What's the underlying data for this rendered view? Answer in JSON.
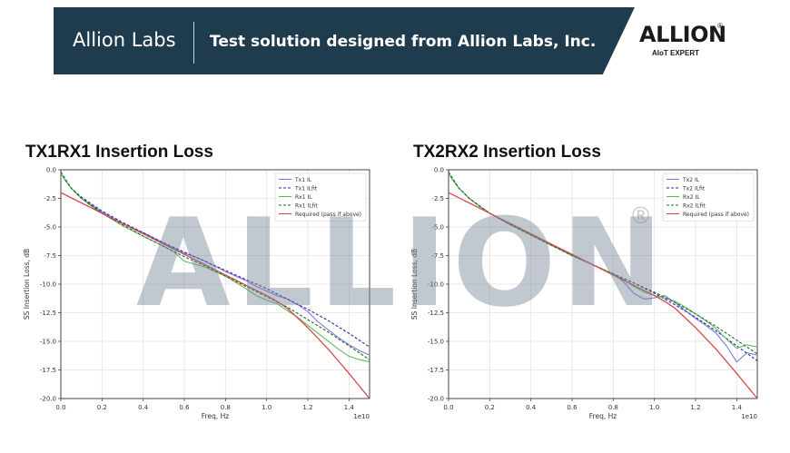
{
  "banner": {
    "brand": "Allion Labs",
    "tagline": "Test solution designed from Allion Labs, Inc."
  },
  "logo": {
    "wordmark": "ALLION",
    "registered": "®",
    "subtitle": "AIoT EXPERT"
  },
  "watermark": {
    "text": "ALLION",
    "registered": "®"
  },
  "colors": {
    "banner_bg": "#1f3b4e",
    "tx_il": "#7b7be6",
    "tx_ilfit": "#2a2aa8",
    "rx_il": "#62b862",
    "rx_ilfit": "#1f6e1f",
    "required": "#d94848"
  },
  "chart_data": [
    {
      "type": "line",
      "title": "TX1RX1 Insertion Loss",
      "xlabel": "Freq, Hz",
      "ylabel": "SS Insertion Loss, dB",
      "x_exponent_label": "1e10",
      "xlim": [
        0.0,
        1.5
      ],
      "ylim": [
        -20.0,
        0.0
      ],
      "xticks": [
        "0.0",
        "0.2",
        "0.4",
        "0.6",
        "0.8",
        "1.0",
        "1.2",
        "1.4"
      ],
      "xtick_values": [
        0.0,
        0.2,
        0.4,
        0.6,
        0.8,
        1.0,
        1.2,
        1.4
      ],
      "yticks": [
        "0.0",
        "-2.5",
        "-5.0",
        "-7.5",
        "-10.0",
        "-12.5",
        "-15.0",
        "-17.5",
        "-20.0"
      ],
      "ytick_values": [
        0.0,
        -2.5,
        -5.0,
        -7.5,
        -10.0,
        -12.5,
        -15.0,
        -17.5,
        -20.0
      ],
      "grid": true,
      "legend_position": "top-right",
      "series": [
        {
          "name": "Tx1 IL",
          "style": "solid",
          "color_key": "tx_il",
          "x": [
            0.0,
            0.02,
            0.05,
            0.1,
            0.15,
            0.2,
            0.3,
            0.4,
            0.5,
            0.6,
            0.65,
            0.7,
            0.8,
            0.9,
            0.95,
            1.0,
            1.05,
            1.1,
            1.15,
            1.2,
            1.25,
            1.3,
            1.35,
            1.4,
            1.45,
            1.5
          ],
          "y": [
            -0.3,
            -0.9,
            -1.6,
            -2.5,
            -3.1,
            -3.7,
            -4.7,
            -5.5,
            -6.4,
            -7.3,
            -7.6,
            -8.0,
            -8.9,
            -9.7,
            -10.2,
            -10.6,
            -11.0,
            -11.3,
            -11.8,
            -12.4,
            -13.3,
            -14.0,
            -14.7,
            -15.3,
            -15.8,
            -16.2
          ]
        },
        {
          "name": "Tx1 ILfit",
          "style": "dashed",
          "color_key": "tx_ilfit",
          "x": [
            0.0,
            0.05,
            0.1,
            0.2,
            0.3,
            0.4,
            0.5,
            0.6,
            0.7,
            0.8,
            0.9,
            1.0,
            1.1,
            1.2,
            1.3,
            1.4,
            1.5
          ],
          "y": [
            -0.2,
            -1.6,
            -2.4,
            -3.6,
            -4.6,
            -5.5,
            -6.4,
            -7.2,
            -8.0,
            -8.8,
            -9.6,
            -10.4,
            -11.3,
            -12.2,
            -13.2,
            -14.3,
            -15.5
          ]
        },
        {
          "name": "Rx1 IL",
          "style": "solid",
          "color_key": "rx_il",
          "x": [
            0.0,
            0.02,
            0.05,
            0.1,
            0.15,
            0.2,
            0.3,
            0.4,
            0.5,
            0.55,
            0.6,
            0.7,
            0.8,
            0.9,
            0.95,
            1.0,
            1.05,
            1.1,
            1.15,
            1.2,
            1.25,
            1.3,
            1.35,
            1.4,
            1.45,
            1.5
          ],
          "y": [
            -0.3,
            -0.9,
            -1.6,
            -2.5,
            -3.2,
            -3.8,
            -4.9,
            -5.8,
            -6.7,
            -7.2,
            -8.0,
            -8.5,
            -9.3,
            -10.4,
            -11.0,
            -11.4,
            -11.7,
            -12.3,
            -12.9,
            -13.6,
            -14.3,
            -15.0,
            -15.7,
            -16.3,
            -16.6,
            -16.8
          ]
        },
        {
          "name": "Rx1 ILfit",
          "style": "dashed",
          "color_key": "rx_ilfit",
          "x": [
            0.0,
            0.05,
            0.1,
            0.2,
            0.3,
            0.4,
            0.5,
            0.6,
            0.7,
            0.8,
            0.9,
            1.0,
            1.1,
            1.2,
            1.3,
            1.4,
            1.5
          ],
          "y": [
            -0.2,
            -1.6,
            -2.5,
            -3.8,
            -4.8,
            -5.8,
            -6.7,
            -7.6,
            -8.4,
            -9.3,
            -10.2,
            -11.1,
            -12.0,
            -13.1,
            -14.2,
            -15.4,
            -16.6
          ]
        },
        {
          "name": "Required (pass if above)",
          "style": "solid",
          "color_key": "required",
          "x": [
            0.0,
            0.1,
            0.2,
            0.3,
            0.4,
            0.5,
            0.6,
            0.7,
            0.8,
            0.9,
            1.0,
            1.05,
            1.1,
            1.2,
            1.3,
            1.4,
            1.5
          ],
          "y": [
            -2.0,
            -2.9,
            -3.8,
            -4.7,
            -5.6,
            -6.5,
            -7.4,
            -8.3,
            -9.2,
            -10.1,
            -11.0,
            -11.5,
            -12.1,
            -13.8,
            -15.7,
            -17.8,
            -20.0
          ]
        }
      ]
    },
    {
      "type": "line",
      "title": "TX2RX2 Insertion Loss",
      "xlabel": "Freq, Hz",
      "ylabel": "SS Insertion Loss, dB",
      "x_exponent_label": "1e10",
      "xlim": [
        0.0,
        1.5
      ],
      "ylim": [
        -20.0,
        0.0
      ],
      "xticks": [
        "0.0",
        "0.2",
        "0.4",
        "0.6",
        "0.8",
        "1.0",
        "1.2",
        "1.4"
      ],
      "xtick_values": [
        0.0,
        0.2,
        0.4,
        0.6,
        0.8,
        1.0,
        1.2,
        1.4
      ],
      "yticks": [
        "0.0",
        "-2.5",
        "-5.0",
        "-7.5",
        "-10.0",
        "-12.5",
        "-15.0",
        "-17.5",
        "-20.0"
      ],
      "ytick_values": [
        0.0,
        -2.5,
        -5.0,
        -7.5,
        -10.0,
        -12.5,
        -15.0,
        -17.5,
        -20.0
      ],
      "grid": true,
      "legend_position": "top-right",
      "series": [
        {
          "name": "Tx2 IL",
          "style": "solid",
          "color_key": "tx_il",
          "x": [
            0.0,
            0.02,
            0.05,
            0.1,
            0.15,
            0.2,
            0.3,
            0.4,
            0.5,
            0.6,
            0.7,
            0.8,
            0.85,
            0.9,
            0.95,
            1.0,
            1.05,
            1.1,
            1.15,
            1.2,
            1.25,
            1.3,
            1.35,
            1.4,
            1.45,
            1.5
          ],
          "y": [
            -0.3,
            -0.9,
            -1.6,
            -2.5,
            -3.2,
            -3.8,
            -4.8,
            -5.7,
            -6.6,
            -7.5,
            -8.3,
            -9.1,
            -9.8,
            -10.8,
            -11.3,
            -11.2,
            -11.0,
            -11.6,
            -12.3,
            -13.0,
            -13.6,
            -14.3,
            -15.4,
            -16.8,
            -16.0,
            -16.2
          ]
        },
        {
          "name": "Tx2 ILfit",
          "style": "dashed",
          "color_key": "tx_ilfit",
          "x": [
            0.0,
            0.05,
            0.1,
            0.2,
            0.3,
            0.4,
            0.5,
            0.6,
            0.7,
            0.8,
            0.9,
            1.0,
            1.1,
            1.2,
            1.3,
            1.4,
            1.5
          ],
          "y": [
            -0.2,
            -1.6,
            -2.5,
            -3.8,
            -4.8,
            -5.7,
            -6.6,
            -7.5,
            -8.3,
            -9.1,
            -9.9,
            -10.8,
            -11.8,
            -12.9,
            -14.1,
            -15.4,
            -16.7
          ]
        },
        {
          "name": "Rx2 IL",
          "style": "solid",
          "color_key": "rx_il",
          "x": [
            0.0,
            0.02,
            0.05,
            0.1,
            0.15,
            0.2,
            0.3,
            0.4,
            0.5,
            0.6,
            0.7,
            0.8,
            0.85,
            0.9,
            0.95,
            1.0,
            1.05,
            1.1,
            1.15,
            1.2,
            1.25,
            1.3,
            1.35,
            1.4,
            1.45,
            1.5
          ],
          "y": [
            -0.3,
            -0.9,
            -1.6,
            -2.5,
            -3.2,
            -3.8,
            -4.8,
            -5.7,
            -6.6,
            -7.5,
            -8.3,
            -9.1,
            -9.6,
            -10.2,
            -10.7,
            -11.0,
            -11.2,
            -11.5,
            -12.0,
            -12.6,
            -13.2,
            -13.9,
            -14.8,
            -15.6,
            -15.3,
            -15.5
          ]
        },
        {
          "name": "Rx2 ILfit",
          "style": "dashed",
          "color_key": "rx_ilfit",
          "x": [
            0.0,
            0.05,
            0.1,
            0.2,
            0.3,
            0.4,
            0.5,
            0.6,
            0.7,
            0.8,
            0.9,
            1.0,
            1.1,
            1.2,
            1.3,
            1.4,
            1.5
          ],
          "y": [
            -0.2,
            -1.6,
            -2.5,
            -3.8,
            -4.8,
            -5.7,
            -6.6,
            -7.5,
            -8.3,
            -9.1,
            -9.9,
            -10.7,
            -11.6,
            -12.6,
            -13.7,
            -14.9,
            -16.1
          ]
        },
        {
          "name": "Required (pass if above)",
          "style": "solid",
          "color_key": "required",
          "x": [
            0.0,
            0.1,
            0.2,
            0.3,
            0.4,
            0.5,
            0.6,
            0.7,
            0.8,
            0.9,
            1.0,
            1.05,
            1.1,
            1.2,
            1.3,
            1.4,
            1.5
          ],
          "y": [
            -2.0,
            -2.9,
            -3.8,
            -4.7,
            -5.6,
            -6.5,
            -7.4,
            -8.3,
            -9.2,
            -10.1,
            -11.0,
            -11.5,
            -12.1,
            -13.8,
            -15.7,
            -17.8,
            -20.0
          ]
        }
      ]
    }
  ]
}
